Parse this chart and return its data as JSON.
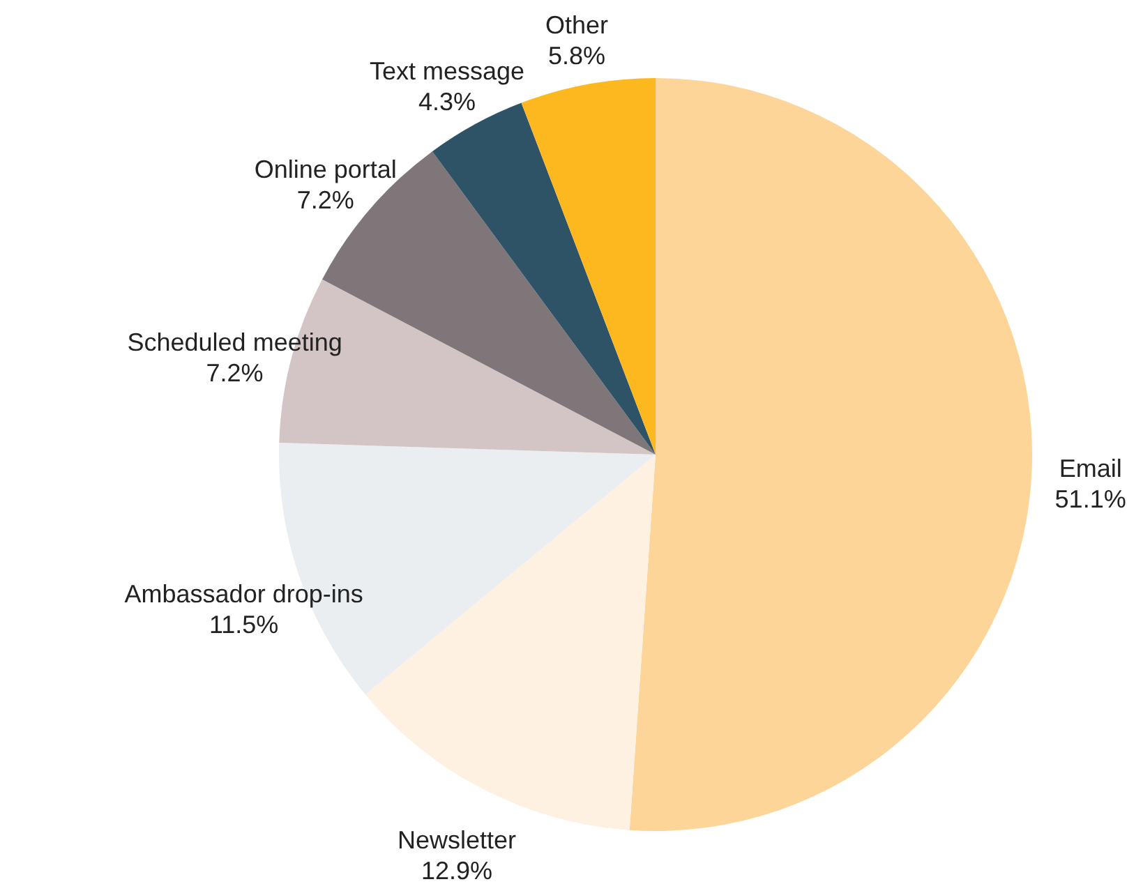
{
  "chart_data": {
    "type": "pie",
    "categories": [
      "Email",
      "Newsletter",
      "Ambassador drop-ins",
      "Scheduled meeting",
      "Online portal",
      "Text message",
      "Other"
    ],
    "values": [
      51.1,
      12.9,
      11.5,
      7.2,
      7.2,
      4.3,
      5.8
    ],
    "value_labels": [
      "51.1%",
      "12.9%",
      "11.5%",
      "7.2%",
      "7.2%",
      "4.3%",
      "5.8%"
    ],
    "colors": [
      "#fdd599",
      "#fef1e1",
      "#eaeef1",
      "#d3c5c5",
      "#7f7679",
      "#2e5266",
      "#fdb71f"
    ]
  }
}
